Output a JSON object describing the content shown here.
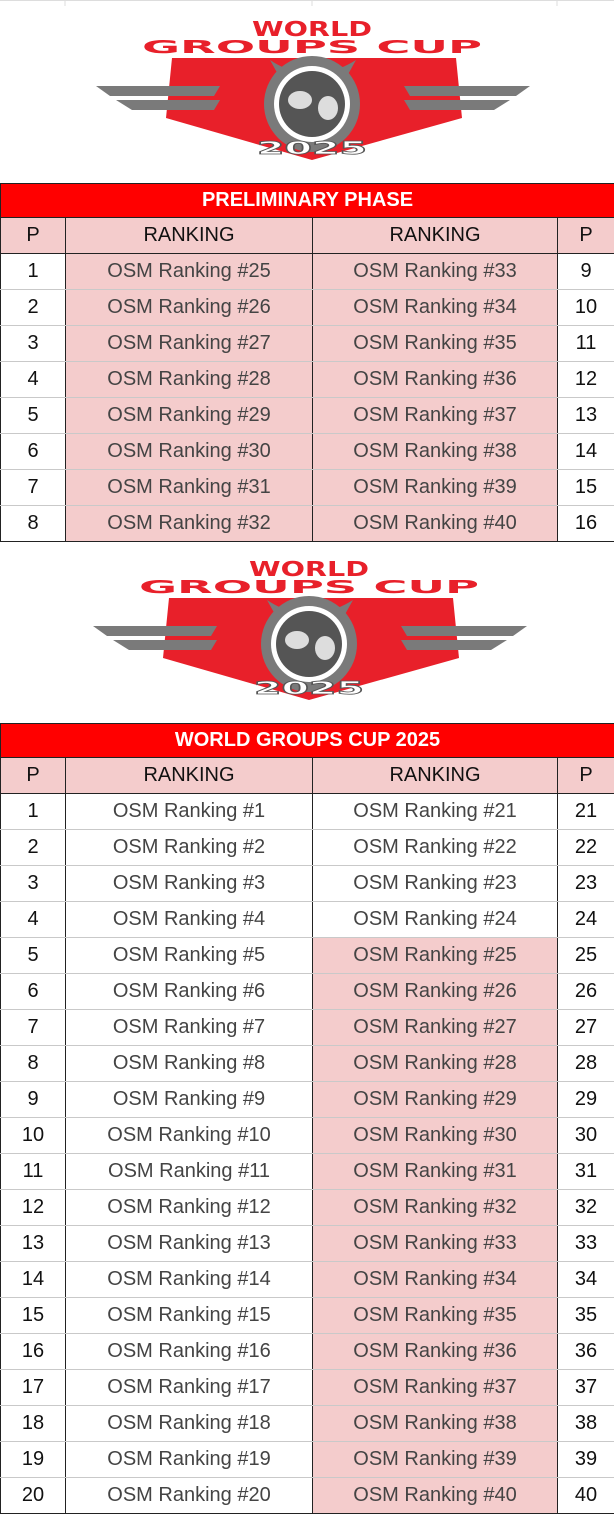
{
  "logos": [
    {
      "top": "WORLD",
      "middle": "GROUPS CUP",
      "year": "2025"
    },
    {
      "top": "WORLD",
      "middle": "GROUPS CUP",
      "year": "2025"
    }
  ],
  "tables": [
    {
      "title": "PRELIMINARY PHASE",
      "header": [
        "P",
        "RANKING",
        "RANKING",
        "P"
      ],
      "rows": [
        [
          1,
          "OSM Ranking #25",
          "OSM Ranking #33",
          9
        ],
        [
          2,
          "OSM Ranking #26",
          "OSM Ranking #34",
          10
        ],
        [
          3,
          "OSM Ranking #27",
          "OSM Ranking #35",
          11
        ],
        [
          4,
          "OSM Ranking #28",
          "OSM Ranking #36",
          12
        ],
        [
          5,
          "OSM Ranking #29",
          "OSM Ranking #37",
          13
        ],
        [
          6,
          "OSM Ranking #30",
          "OSM Ranking #38",
          14
        ],
        [
          7,
          "OSM Ranking #31",
          "OSM Ranking #39",
          15
        ],
        [
          8,
          "OSM Ranking #32",
          "OSM Ranking #40",
          16
        ]
      ]
    },
    {
      "title": "WORLD GROUPS CUP 2025",
      "header": [
        "P",
        "RANKING",
        "RANKING",
        "P"
      ],
      "rows": [
        [
          1,
          "OSM Ranking #1",
          "OSM Ranking #21",
          21
        ],
        [
          2,
          "OSM Ranking #2",
          "OSM Ranking #22",
          22
        ],
        [
          3,
          "OSM Ranking #3",
          "OSM Ranking #23",
          23
        ],
        [
          4,
          "OSM Ranking #4",
          "OSM Ranking #24",
          24
        ],
        [
          5,
          "OSM Ranking #5",
          "OSM Ranking #25",
          25
        ],
        [
          6,
          "OSM Ranking #6",
          "OSM Ranking #26",
          26
        ],
        [
          7,
          "OSM Ranking #7",
          "OSM Ranking #27",
          27
        ],
        [
          8,
          "OSM Ranking #8",
          "OSM Ranking #28",
          28
        ],
        [
          9,
          "OSM Ranking #9",
          "OSM Ranking #29",
          29
        ],
        [
          10,
          "OSM Ranking #10",
          "OSM Ranking #30",
          30
        ],
        [
          11,
          "OSM Ranking #11",
          "OSM Ranking #31",
          31
        ],
        [
          12,
          "OSM Ranking #12",
          "OSM Ranking #32",
          32
        ],
        [
          13,
          "OSM Ranking #13",
          "OSM Ranking #33",
          33
        ],
        [
          14,
          "OSM Ranking #14",
          "OSM Ranking #34",
          34
        ],
        [
          15,
          "OSM Ranking #15",
          "OSM Ranking #35",
          35
        ],
        [
          16,
          "OSM Ranking #16",
          "OSM Ranking #36",
          36
        ],
        [
          17,
          "OSM Ranking #17",
          "OSM Ranking #37",
          37
        ],
        [
          18,
          "OSM Ranking #18",
          "OSM Ranking #38",
          38
        ],
        [
          19,
          "OSM Ranking #19",
          "OSM Ranking #39",
          39
        ],
        [
          20,
          "OSM Ranking #20",
          "OSM Ranking #40",
          40
        ]
      ]
    }
  ]
}
